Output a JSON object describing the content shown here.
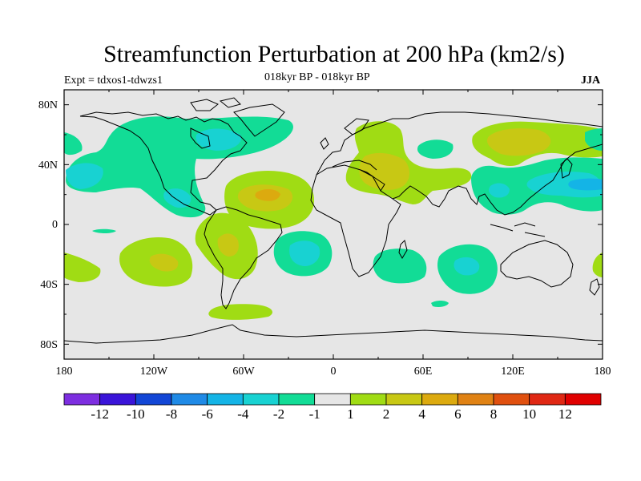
{
  "header": {
    "title": "Streamfunction Perturbation at 200 hPa (km2/s)",
    "experiment": "Expt = tdxos1-tdwzs1",
    "period": "018kyr BP - 018kyr BP",
    "season": "JJA"
  },
  "axes": {
    "lat_labels": [
      "80N",
      "40N",
      "0",
      "40S",
      "80S"
    ],
    "lon_labels": [
      "180",
      "120W",
      "60W",
      "0",
      "60E",
      "120E",
      "180"
    ]
  },
  "colorbar": {
    "colors": [
      "#7d2ee0",
      "#3a14d9",
      "#1246d6",
      "#1f8ae6",
      "#14b4e6",
      "#18d2d2",
      "#12dc96",
      "#e6e6e6",
      "#a0dc14",
      "#c8c814",
      "#dcaa0f",
      "#e08214",
      "#e0500f",
      "#e02814",
      "#e00000"
    ],
    "labels": [
      "-12",
      "-10",
      "-8",
      "-6",
      "-4",
      "-2",
      "-1",
      "1",
      "2",
      "4",
      "6",
      "8",
      "10",
      "12"
    ]
  },
  "chart_data": {
    "type": "contour-map",
    "title": "Streamfunction Perturbation at 200 hPa (km2/s)",
    "variable": "streamfunction perturbation",
    "units": "km2/s",
    "level_hPa": 200,
    "season": "JJA",
    "levels": [
      -12,
      -10,
      -8,
      -6,
      -4,
      -2,
      -1,
      1,
      2,
      4,
      6,
      8,
      10,
      12
    ],
    "lon_range": [
      -180,
      180
    ],
    "lat_range": [
      -90,
      90
    ],
    "background_fill": "#e6e6e6",
    "regions": [
      {
        "name": "north-america-high-latitudes",
        "lon": -100,
        "lat": 60,
        "min_value": -2,
        "max_value": -4
      },
      {
        "name": "north-pacific",
        "lon": -160,
        "lat": 35,
        "min_value": -2,
        "max_value": -4
      },
      {
        "name": "mexico",
        "lon": -110,
        "lat": 20,
        "min_value": -2,
        "max_value": -4
      },
      {
        "name": "tropical-north-atlantic",
        "lon": -45,
        "lat": 25,
        "min_value": 2,
        "max_value": 6
      },
      {
        "name": "middle-east",
        "lon": 40,
        "lat": 35,
        "min_value": 2,
        "max_value": 4
      },
      {
        "name": "central-asia",
        "lon": 110,
        "lat": 55,
        "min_value": 2,
        "max_value": 4
      },
      {
        "name": "north-west-pacific",
        "lon": 150,
        "lat": 27,
        "min_value": -2,
        "max_value": -4
      },
      {
        "name": "south-america",
        "lon": -65,
        "lat": -15,
        "min_value": 2,
        "max_value": 4
      },
      {
        "name": "south-pacific",
        "lon": -110,
        "lat": -25,
        "min_value": 2,
        "max_value": 4
      },
      {
        "name": "south-atlantic",
        "lon": -20,
        "lat": -20,
        "min_value": -2,
        "max_value": -4
      },
      {
        "name": "southern-indian-ocean",
        "lon": 90,
        "lat": -28,
        "min_value": -2,
        "max_value": -4
      },
      {
        "name": "south-of-africa",
        "lon": 45,
        "lat": -28,
        "min_value": -1,
        "max_value": -2
      },
      {
        "name": "southern-ocean-south-america",
        "lon": -60,
        "lat": -55,
        "min_value": 1,
        "max_value": 2
      }
    ]
  }
}
